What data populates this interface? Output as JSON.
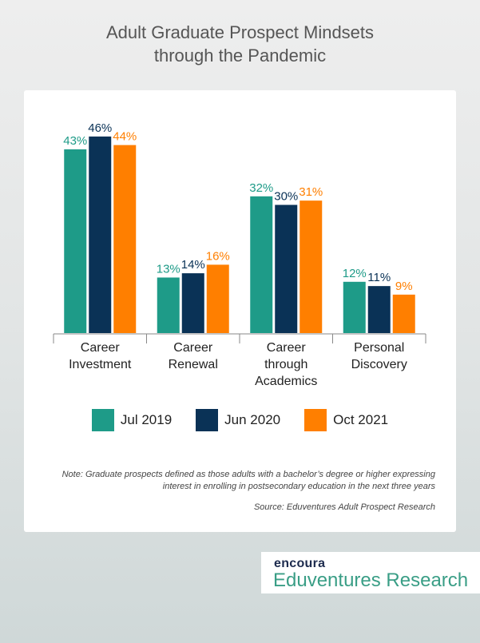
{
  "title_line1": "Adult Graduate Prospect Mindsets",
  "title_line2": "through the Pandemic",
  "chart_data": {
    "type": "bar",
    "categories": [
      [
        "Career",
        "Investment"
      ],
      [
        "Career",
        "Renewal"
      ],
      [
        "Career",
        "through",
        "Academics"
      ],
      [
        "Personal",
        "Discovery"
      ]
    ],
    "series": [
      {
        "name": "Jul 2019",
        "color": "#1e9b88",
        "values": [
          43,
          13,
          32,
          12
        ]
      },
      {
        "name": "Jun 2020",
        "color": "#0a3256",
        "values": [
          46,
          14,
          30,
          11
        ]
      },
      {
        "name": "Oct 2021",
        "color": "#ff7f00",
        "values": [
          44,
          16,
          31,
          9
        ]
      }
    ],
    "value_format": "%",
    "legend": "bottom",
    "grid": false
  },
  "note": "Note: Graduate prospects defined as those adults with a bachelor’s degree or higher expressing interest in enrolling in postsecondary education in the next three years",
  "source": "Source: Eduventures Adult Prospect Research",
  "logo": {
    "brand": "encoura",
    "product": "Eduventures Research"
  }
}
